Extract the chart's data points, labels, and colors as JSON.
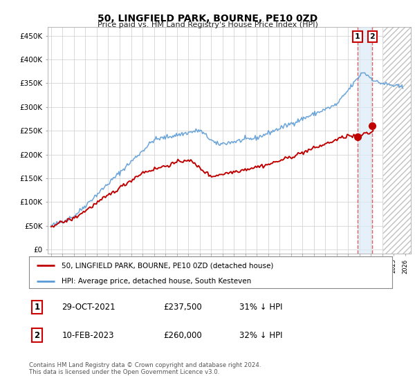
{
  "title": "50, LINGFIELD PARK, BOURNE, PE10 0ZD",
  "subtitle": "Price paid vs. HM Land Registry's House Price Index (HPI)",
  "yticks": [
    0,
    50000,
    100000,
    150000,
    200000,
    250000,
    300000,
    350000,
    400000,
    450000
  ],
  "ytick_labels": [
    "£0",
    "£50K",
    "£100K",
    "£150K",
    "£200K",
    "£250K",
    "£300K",
    "£350K",
    "£400K",
    "£450K"
  ],
  "xlim_start": 1994.7,
  "xlim_end": 2026.5,
  "ylim": [
    -8000,
    468000
  ],
  "hpi_color": "#5b9bd5",
  "price_color": "#c00000",
  "marker1_date_x": 2021.83,
  "marker2_date_x": 2023.12,
  "marker1_price": 237500,
  "marker2_price": 260000,
  "legend_line1": "50, LINGFIELD PARK, BOURNE, PE10 0ZD (detached house)",
  "legend_line2": "HPI: Average price, detached house, South Kesteven",
  "table_row1": [
    "1",
    "29-OCT-2021",
    "£237,500",
    "31% ↓ HPI"
  ],
  "table_row2": [
    "2",
    "10-FEB-2023",
    "£260,000",
    "32% ↓ HPI"
  ],
  "footer": "Contains HM Land Registry data © Crown copyright and database right 2024.\nThis data is licensed under the Open Government Licence v3.0.",
  "background_color": "#ffffff",
  "plot_bg_color": "#ffffff",
  "grid_color": "#cccccc"
}
